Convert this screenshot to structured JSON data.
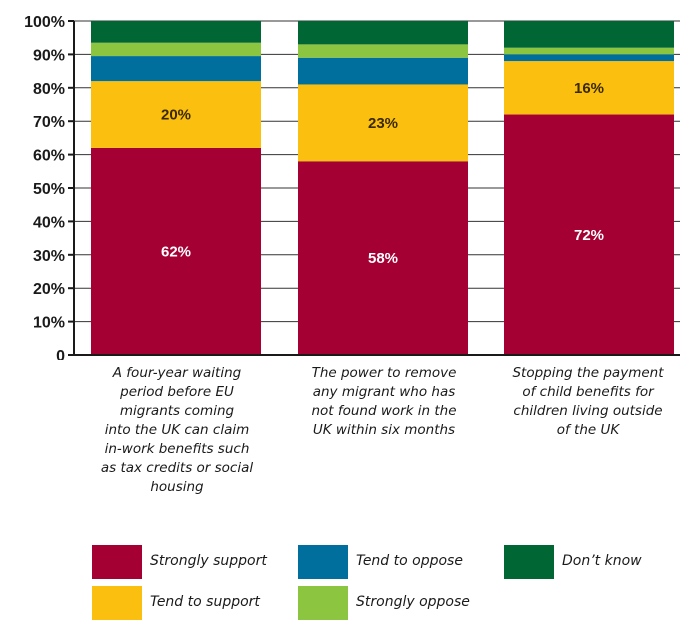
{
  "chart_data": {
    "type": "bar",
    "stacked": true,
    "categories": [
      "A four-year waiting period before EU migrants coming into the UK can claim in-work benefits such as tax credits or social housing",
      "The power to remove any migrant who has not found work in the UK within six months",
      "Stopping the payment of child benefits for children living outside of the UK"
    ],
    "category_lines": [
      [
        "A four-year waiting",
        "period before EU",
        "migrants coming",
        "into the UK can claim",
        "in-work benefits such",
        "as tax credits or social",
        "housing"
      ],
      [
        "The power to remove",
        "any migrant who has",
        "not found work in the",
        "UK within six months"
      ],
      [
        "Stopping the payment",
        "of child benefits for",
        "children living outside",
        "of the UK"
      ]
    ],
    "series": [
      {
        "name": "Strongly support",
        "color": "#a50034",
        "label_color": "#ffffff",
        "values": [
          62,
          58,
          72
        ],
        "labels": [
          "62%",
          "58%",
          "72%"
        ]
      },
      {
        "name": "Tend to support",
        "color": "#fbbf10",
        "label_color": "#3a2a00",
        "values": [
          20,
          23,
          16
        ],
        "labels": [
          "20%",
          "23%",
          "16%"
        ]
      },
      {
        "name": "Tend to oppose",
        "color": "#006f9e",
        "label_color": "#ffffff",
        "values": [
          7.5,
          8,
          2
        ],
        "labels": [
          "",
          "",
          ""
        ]
      },
      {
        "name": "Strongly oppose",
        "color": "#8cc641",
        "label_color": "#ffffff",
        "values": [
          4,
          4,
          2
        ],
        "labels": [
          "",
          "",
          ""
        ]
      },
      {
        "name": "Don’t know",
        "color": "#006633",
        "label_color": "#ffffff",
        "values": [
          6.5,
          7,
          8
        ],
        "labels": [
          "",
          "",
          ""
        ]
      }
    ],
    "ylim": [
      0,
      100
    ],
    "yticks": [
      0,
      10,
      20,
      30,
      40,
      50,
      60,
      70,
      80,
      90,
      100
    ],
    "ytick_labels": [
      "0",
      "10%",
      "20%",
      "30%",
      "40%",
      "50%",
      "60%",
      "70%",
      "80%",
      "90%",
      "100%"
    ],
    "grid": true,
    "legend_position": "bottom"
  }
}
